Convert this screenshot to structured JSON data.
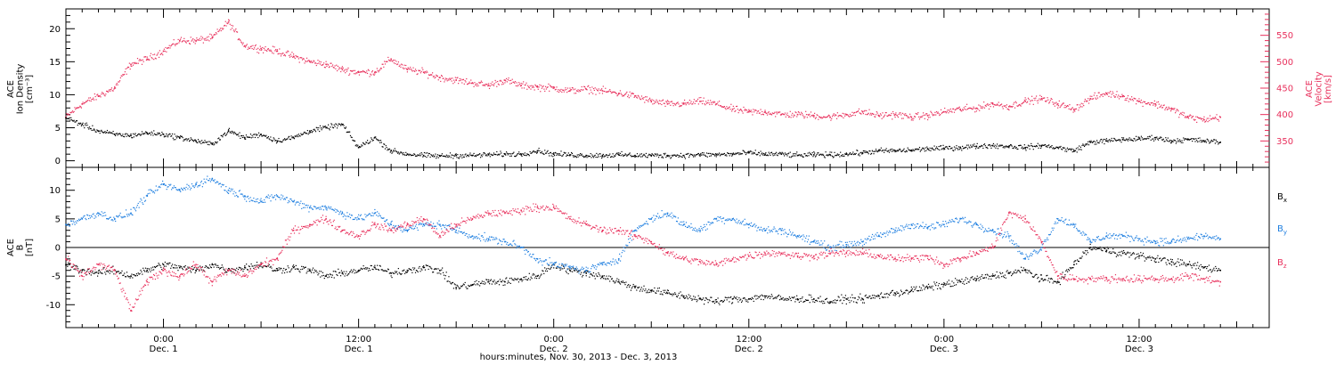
{
  "colors": {
    "black": "#000000",
    "red": "#e8305c",
    "blue": "#1f7fe0"
  },
  "xlabel": "hours:minutes, Nov. 30, 2013 - Dec. 3, 2013",
  "chart_data": [
    {
      "type": "scatter",
      "panel": "top",
      "ylabel_left": [
        "ACE",
        "Ion Density",
        "[cm⁻³]"
      ],
      "ylabel_right": [
        "ACE",
        "Velocity",
        "[km/s]"
      ],
      "ylim_left": [
        -1,
        23
      ],
      "yticks_left": [
        "0",
        "5",
        "10",
        "15",
        "20"
      ],
      "ylim_right": [
        300,
        600
      ],
      "yticks_right": [
        "350",
        "400",
        "450",
        "500",
        "550"
      ],
      "x_unit": "hours since Nov. 30 00:00",
      "xlim": [
        18,
        92
      ],
      "series": [
        {
          "color": "red",
          "axis": "right",
          "x": [
            18,
            19,
            20,
            21,
            22,
            23,
            24,
            25,
            26,
            27,
            28,
            29,
            30,
            31,
            32,
            33,
            34,
            35,
            36,
            37,
            38,
            39,
            40,
            41,
            42,
            43,
            44,
            45,
            46,
            47,
            48,
            49,
            50,
            51,
            52,
            53,
            54,
            55,
            56,
            57,
            58,
            59,
            60,
            61,
            62,
            63,
            64,
            65,
            66,
            67,
            68,
            69,
            70,
            71,
            72,
            73,
            74,
            75,
            76,
            77,
            78,
            79,
            80,
            81,
            82,
            83,
            84,
            85,
            86,
            87,
            88,
            89
          ],
          "y": [
            395,
            420,
            435,
            450,
            495,
            505,
            520,
            540,
            540,
            545,
            575,
            530,
            525,
            520,
            510,
            500,
            495,
            485,
            480,
            480,
            505,
            485,
            480,
            470,
            465,
            460,
            455,
            465,
            455,
            452,
            450,
            445,
            448,
            445,
            440,
            435,
            425,
            420,
            420,
            425,
            420,
            410,
            405,
            405,
            400,
            400,
            398,
            395,
            400,
            405,
            398,
            400,
            395,
            398,
            405,
            410,
            412,
            420,
            415,
            425,
            430,
            420,
            410,
            430,
            440,
            435,
            425,
            420,
            410,
            395,
            390,
            395
          ]
        },
        {
          "color": "black",
          "axis": "left",
          "x": [
            18,
            19,
            20,
            21,
            22,
            23,
            24,
            25,
            26,
            27,
            28,
            29,
            30,
            31,
            32,
            33,
            34,
            35,
            36,
            37,
            38,
            39,
            40,
            41,
            42,
            43,
            44,
            45,
            46,
            47,
            48,
            49,
            50,
            51,
            52,
            53,
            54,
            55,
            56,
            57,
            58,
            59,
            60,
            61,
            62,
            63,
            64,
            65,
            66,
            67,
            68,
            69,
            70,
            71,
            72,
            73,
            74,
            75,
            76,
            77,
            78,
            79,
            80,
            81,
            82,
            83,
            84,
            85,
            86,
            87,
            88,
            89
          ],
          "y": [
            6.5,
            5.5,
            4.5,
            4.0,
            3.8,
            4.2,
            4.0,
            3.5,
            3.0,
            2.5,
            4.5,
            3.5,
            4.0,
            3.0,
            3.5,
            4.5,
            5.0,
            5.5,
            2.0,
            3.5,
            1.5,
            1.0,
            0.8,
            0.7,
            0.8,
            0.8,
            0.9,
            1.0,
            1.0,
            1.5,
            1.0,
            0.9,
            0.8,
            0.8,
            0.9,
            0.8,
            0.8,
            0.8,
            0.8,
            0.9,
            0.9,
            1.0,
            1.2,
            1.0,
            1.0,
            0.8,
            0.9,
            0.9,
            1.0,
            1.2,
            1.5,
            1.5,
            1.6,
            1.8,
            1.9,
            2.0,
            2.2,
            2.3,
            2.2,
            2.0,
            2.3,
            2.0,
            1.5,
            2.8,
            3.0,
            3.2,
            3.3,
            3.5,
            3.0,
            3.2,
            3.0,
            2.8
          ]
        }
      ]
    },
    {
      "type": "scatter",
      "panel": "bottom",
      "ylabel_left": [
        "ACE",
        "B",
        "[nT]"
      ],
      "ylim_left": [
        -14,
        14
      ],
      "yticks_left": [
        "-10",
        "-5",
        "0",
        "5",
        "10"
      ],
      "x_unit": "hours since Nov. 30 00:00",
      "xlim": [
        18,
        92
      ],
      "legend": [
        {
          "text": "B",
          "sub": "x",
          "color": "black"
        },
        {
          "text": "B",
          "sub": "y",
          "color": "blue"
        },
        {
          "text": "B",
          "sub": "z",
          "color": "red"
        }
      ],
      "series": [
        {
          "name": "Bx",
          "color": "black",
          "x": [
            18,
            19,
            20,
            21,
            22,
            23,
            24,
            25,
            26,
            27,
            28,
            29,
            30,
            31,
            32,
            33,
            34,
            35,
            36,
            37,
            38,
            39,
            40,
            41,
            42,
            43,
            44,
            45,
            46,
            47,
            48,
            49,
            50,
            51,
            52,
            53,
            54,
            55,
            56,
            57,
            58,
            59,
            60,
            61,
            62,
            63,
            64,
            65,
            66,
            67,
            68,
            69,
            70,
            71,
            72,
            73,
            74,
            75,
            76,
            77,
            78,
            79,
            80,
            81,
            82,
            83,
            84,
            85,
            86,
            87,
            88,
            89
          ],
          "y": [
            -3,
            -4,
            -4.5,
            -4,
            -5,
            -4,
            -3,
            -3.5,
            -4,
            -3,
            -4,
            -3.5,
            -3,
            -4,
            -3.5,
            -4,
            -5,
            -4.5,
            -4,
            -3.5,
            -4.5,
            -4,
            -3.5,
            -4,
            -7,
            -6.5,
            -6,
            -6,
            -5.5,
            -5,
            -3,
            -4,
            -4.5,
            -5,
            -6,
            -7,
            -7.5,
            -8,
            -8.5,
            -9,
            -9.5,
            -9,
            -9,
            -8.5,
            -9,
            -9,
            -9,
            -9.5,
            -9,
            -9,
            -8.5,
            -8,
            -7.5,
            -7,
            -6.5,
            -6,
            -5.5,
            -5,
            -4.5,
            -4,
            -5.5,
            -6,
            -3,
            0,
            -0.5,
            -1,
            -1.5,
            -2,
            -2.5,
            -3,
            -3.5,
            -4
          ]
        },
        {
          "name": "By",
          "color": "blue",
          "x": [
            18,
            19,
            20,
            21,
            22,
            23,
            24,
            25,
            26,
            27,
            28,
            29,
            30,
            31,
            32,
            33,
            34,
            35,
            36,
            37,
            38,
            39,
            40,
            41,
            42,
            43,
            44,
            45,
            46,
            47,
            48,
            49,
            50,
            51,
            52,
            53,
            54,
            55,
            56,
            57,
            58,
            59,
            60,
            61,
            62,
            63,
            64,
            65,
            66,
            67,
            68,
            69,
            70,
            71,
            72,
            73,
            74,
            75,
            76,
            77,
            78,
            79,
            80,
            81,
            82,
            83,
            84,
            85,
            86,
            87,
            88,
            89
          ],
          "y": [
            4,
            5,
            6,
            5,
            6,
            9,
            11,
            10,
            11,
            12,
            10,
            9,
            8,
            9,
            8,
            7,
            7,
            6,
            5,
            6,
            4,
            3,
            4,
            4,
            3,
            2,
            1.5,
            1,
            0,
            -2,
            -3,
            -3.5,
            -4,
            -3,
            -2,
            3,
            5,
            6,
            4,
            3,
            5,
            5,
            4,
            3,
            3,
            2,
            1,
            0,
            0.5,
            1,
            2,
            3,
            4,
            3.5,
            4,
            5,
            4,
            3,
            2,
            -2,
            0,
            5,
            4,
            1,
            2,
            2,
            1.5,
            1,
            1,
            1.5,
            2,
            1.5
          ]
        },
        {
          "name": "Bz",
          "color": "red",
          "x": [
            18,
            19,
            20,
            21,
            22,
            23,
            24,
            25,
            26,
            27,
            28,
            29,
            30,
            31,
            32,
            33,
            34,
            35,
            36,
            37,
            38,
            39,
            40,
            41,
            42,
            43,
            44,
            45,
            46,
            47,
            48,
            49,
            50,
            51,
            52,
            53,
            54,
            55,
            56,
            57,
            58,
            59,
            60,
            61,
            62,
            63,
            64,
            65,
            66,
            67,
            68,
            69,
            70,
            71,
            72,
            73,
            74,
            75,
            76,
            77,
            78,
            79,
            80,
            81,
            82,
            83,
            84,
            85,
            86,
            87,
            88,
            89
          ],
          "y": [
            -2,
            -5,
            -3,
            -4,
            -11,
            -6,
            -4,
            -5,
            -3,
            -6,
            -4,
            -5,
            -3,
            -2,
            3,
            4,
            5,
            3,
            2,
            4,
            3,
            4,
            5,
            2,
            4,
            5,
            6,
            6,
            6.5,
            7,
            7,
            5,
            4,
            3,
            3,
            2,
            1,
            -1,
            -2,
            -2.5,
            -3,
            -2,
            -1.5,
            -1,
            -1,
            -1.5,
            -1.5,
            -1,
            -1,
            -1,
            -1.5,
            -2,
            -2,
            -1.5,
            -3,
            -2,
            -1,
            0,
            6,
            5,
            1,
            -5,
            -5.5,
            -5.5,
            -5.5,
            -5.5,
            -5.5,
            -5.5,
            -5.5,
            -5,
            -5.5,
            -6
          ]
        }
      ]
    }
  ],
  "x_ticks": [
    {
      "time": "0:00",
      "date": "Dec. 1"
    },
    {
      "time": "12:00",
      "date": "Dec. 1"
    },
    {
      "time": "0:00",
      "date": "Dec. 2"
    },
    {
      "time": "12:00",
      "date": "Dec. 2"
    },
    {
      "time": "0:00",
      "date": "Dec. 3"
    },
    {
      "time": "12:00",
      "date": "Dec. 3"
    }
  ],
  "x_tick_hours": [
    24,
    36,
    48,
    60,
    72,
    84
  ]
}
